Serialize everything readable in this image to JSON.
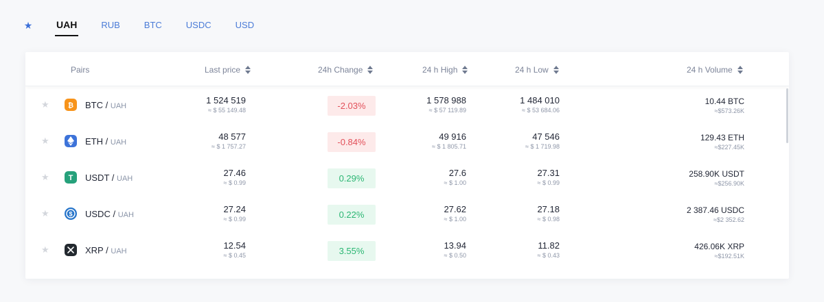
{
  "tabs": {
    "favorites_icon": "star-icon",
    "items": [
      {
        "label": "UAH",
        "active": true
      },
      {
        "label": "RUB",
        "active": false
      },
      {
        "label": "BTC",
        "active": false
      },
      {
        "label": "USDC",
        "active": false
      },
      {
        "label": "USD",
        "active": false
      }
    ]
  },
  "table": {
    "headers": {
      "pairs": "Pairs",
      "last_price": "Last price",
      "change": "24h Change",
      "high": "24 h High",
      "low": "24 h Low",
      "volume": "24 h Volume"
    },
    "rows": [
      {
        "base": "BTC",
        "sep": "/",
        "quote": "UAH",
        "icon": "bitcoin-icon",
        "icon_color": "#f7931a",
        "last": "1 524 519",
        "last_usd": "≈ $ 55 149.48",
        "change": "-2.03%",
        "change_dir": "neg",
        "high": "1 578 988",
        "high_usd": "≈ $ 57 119.89",
        "low": "1 484 010",
        "low_usd": "≈ $ 53 684.06",
        "volume": "10.44 BTC",
        "volume_usd": "≈$573.26K"
      },
      {
        "base": "ETH",
        "sep": "/",
        "quote": "UAH",
        "icon": "ethereum-icon",
        "icon_color": "#3d73d9",
        "last": "48 577",
        "last_usd": "≈ $ 1 757.27",
        "change": "-0.84%",
        "change_dir": "neg",
        "high": "49 916",
        "high_usd": "≈ $ 1 805.71",
        "low": "47 546",
        "low_usd": "≈ $ 1 719.98",
        "volume": "129.43 ETH",
        "volume_usd": "≈$227.45K"
      },
      {
        "base": "USDT",
        "sep": "/",
        "quote": "UAH",
        "icon": "tether-icon",
        "icon_color": "#26a17b",
        "last": "27.46",
        "last_usd": "≈ $ 0.99",
        "change": "0.29%",
        "change_dir": "pos",
        "high": "27.6",
        "high_usd": "≈ $ 1.00",
        "low": "27.31",
        "low_usd": "≈ $ 0.99",
        "volume": "258.90K USDT",
        "volume_usd": "≈$256.90K"
      },
      {
        "base": "USDC",
        "sep": "/",
        "quote": "UAH",
        "icon": "usdc-icon",
        "icon_color": "#2775ca",
        "last": "27.24",
        "last_usd": "≈ $ 0.99",
        "change": "0.22%",
        "change_dir": "pos",
        "high": "27.62",
        "high_usd": "≈ $ 1.00",
        "low": "27.18",
        "low_usd": "≈ $ 0.98",
        "volume": "2 387.46 USDC",
        "volume_usd": "≈$2 352.62"
      },
      {
        "base": "XRP",
        "sep": "/",
        "quote": "UAH",
        "icon": "xrp-icon",
        "icon_color": "#23292f",
        "last": "12.54",
        "last_usd": "≈ $ 0.45",
        "change": "3.55%",
        "change_dir": "pos",
        "high": "13.94",
        "high_usd": "≈ $ 0.50",
        "low": "11.82",
        "low_usd": "≈ $ 0.43",
        "volume": "426.06K XRP",
        "volume_usd": "≈$192.51K"
      }
    ]
  }
}
